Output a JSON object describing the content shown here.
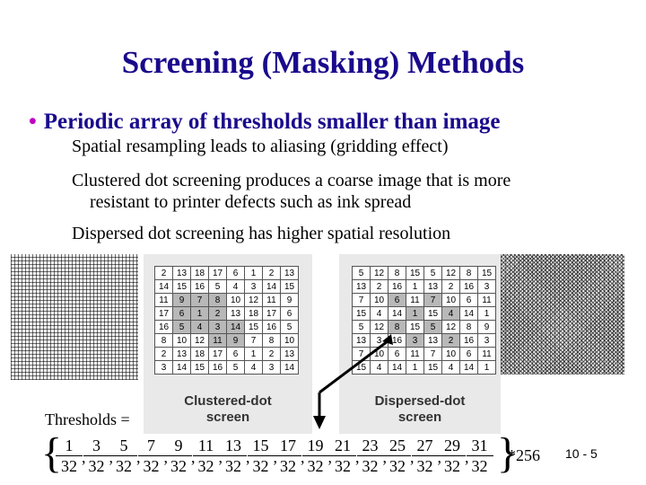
{
  "title": "Screening (Masking) Methods",
  "bullet": "Periodic array of thresholds smaller than image",
  "lines": [
    "Spatial resampling leads to aliasing (gridding effect)",
    "Clustered dot screening produces a coarse image that is more",
    "resistant to printer defects such as ink spread",
    "Dispersed dot screening has higher spatial resolution"
  ],
  "clustered": {
    "caption_line1": "Clustered-dot",
    "caption_line2": "screen",
    "rows": [
      [
        "2",
        "13",
        "18",
        "17",
        "6",
        "1",
        "2",
        "13"
      ],
      [
        "14",
        "15",
        "16",
        "5",
        "4",
        "3",
        "14",
        "15"
      ],
      [
        "11",
        "9",
        "7",
        "8",
        "10",
        "12",
        "11",
        "9"
      ],
      [
        "17",
        "6",
        "1",
        "2",
        "13",
        "18",
        "17",
        "6"
      ],
      [
        "16",
        "5",
        "4",
        "3",
        "14",
        "15",
        "16",
        "5"
      ],
      [
        "8",
        "10",
        "12",
        "11",
        "9",
        "7",
        "8",
        "10"
      ],
      [
        "2",
        "13",
        "18",
        "17",
        "6",
        "1",
        "2",
        "13"
      ],
      [
        "3",
        "14",
        "15",
        "16",
        "5",
        "4",
        "3",
        "14"
      ]
    ]
  },
  "dispersed": {
    "caption_line1": "Dispersed-dot",
    "caption_line2": "screen",
    "rows": [
      [
        "5",
        "12",
        "8",
        "15",
        "5",
        "12",
        "8",
        "15"
      ],
      [
        "13",
        "2",
        "16",
        "1",
        "13",
        "2",
        "16",
        "3"
      ],
      [
        "7",
        "10",
        "6",
        "11",
        "7",
        "10",
        "6",
        "11"
      ],
      [
        "15",
        "4",
        "14",
        "1",
        "15",
        "4",
        "14",
        "1"
      ],
      [
        "5",
        "12",
        "8",
        "15",
        "5",
        "12",
        "8",
        "9"
      ],
      [
        "13",
        "3",
        "16",
        "3",
        "13",
        "2",
        "16",
        "3"
      ],
      [
        "7",
        "10",
        "6",
        "11",
        "7",
        "10",
        "6",
        "11"
      ],
      [
        "15",
        "4",
        "14",
        "1",
        "15",
        "4",
        "14",
        "1"
      ]
    ]
  },
  "thresholds_label": "Thresholds =",
  "thresholds": {
    "numerators": [
      "1",
      "3",
      "5",
      "7",
      "9",
      "11",
      "13",
      "15",
      "17",
      "19",
      "21",
      "23",
      "25",
      "27",
      "29",
      "31"
    ],
    "denominator": "32",
    "multiplier": "*256"
  },
  "page_number": "10 - 5"
}
